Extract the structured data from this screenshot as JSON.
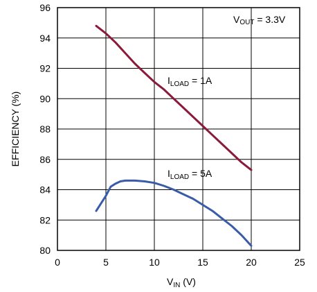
{
  "chart_data": {
    "type": "line",
    "xlabel": {
      "main": "V",
      "sub": "IN",
      "suffix": " (V)"
    },
    "ylabel": "EFFICIENCY (%)",
    "xlim": [
      0,
      25
    ],
    "ylim": [
      80,
      96
    ],
    "xticks": [
      0,
      5,
      10,
      15,
      20,
      25
    ],
    "yticks": [
      80,
      82,
      84,
      86,
      88,
      90,
      92,
      94,
      96
    ],
    "grid": true,
    "series": [
      {
        "label_main": "I",
        "label_sub": "LOAD",
        "label_suffix": " = 1A",
        "color": "#8b1a3a",
        "x": [
          4,
          5,
          6,
          7,
          8,
          9,
          10,
          11,
          12,
          13,
          14,
          15,
          16,
          17,
          18,
          19,
          20
        ],
        "y": [
          94.8,
          94.3,
          93.7,
          93.0,
          92.3,
          91.7,
          91.1,
          90.6,
          90.0,
          89.4,
          88.8,
          88.2,
          87.6,
          87.0,
          86.4,
          85.8,
          85.3
        ]
      },
      {
        "label_main": "I",
        "label_sub": "LOAD",
        "label_suffix": " = 5A",
        "color": "#3a5ca8",
        "x": [
          4,
          5,
          5.5,
          6,
          6.5,
          7,
          8,
          9,
          10,
          11,
          12,
          13,
          14,
          15,
          16,
          17,
          18,
          19,
          20
        ],
        "y": [
          82.6,
          83.6,
          84.2,
          84.4,
          84.55,
          84.6,
          84.6,
          84.55,
          84.45,
          84.25,
          84.0,
          83.7,
          83.4,
          83.0,
          82.6,
          82.1,
          81.6,
          81.0,
          80.3
        ]
      }
    ],
    "annotation": {
      "main": "V",
      "sub": "OUT",
      "suffix": " = 3.3V"
    }
  }
}
